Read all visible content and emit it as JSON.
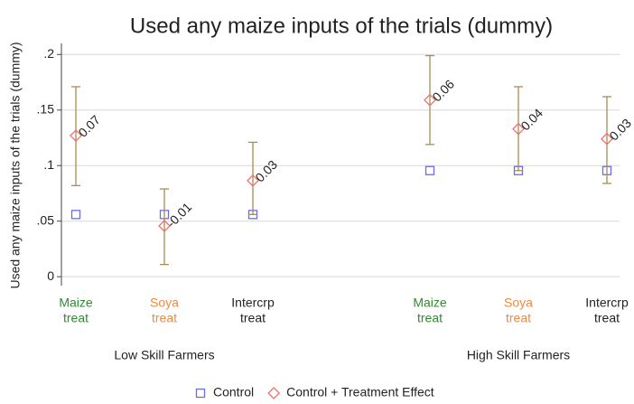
{
  "chart_data": {
    "type": "dot-ci",
    "title": "Used any maize inputs of the trials (dummy)",
    "y_label": "Used any maize inputs of the trials (dummy)",
    "categories": [
      [
        "Maize",
        "treat"
      ],
      [
        "Soya",
        "treat"
      ],
      [
        "Intercrp",
        "treat"
      ],
      [
        "Maize",
        "treat"
      ],
      [
        "Soya",
        "treat"
      ],
      [
        "Intercrp",
        "treat"
      ]
    ],
    "category_colors": [
      "#2e8b2e",
      "#f08a3c",
      "#222222",
      "#2e8b2e",
      "#f08a3c",
      "#222222"
    ],
    "groups": [
      "Low Skill Farmers",
      "High Skill Farmers"
    ],
    "series": [
      {
        "name": "Control",
        "color": "#6b6bf0",
        "marker": "square",
        "values": [
          0.056,
          0.056,
          0.056,
          0.0955,
          0.0955,
          0.0955
        ]
      },
      {
        "name": "Control + Treatment Effect",
        "color": "#f07070",
        "marker": "diamond",
        "values": [
          0.127,
          0.0457,
          0.0865,
          0.159,
          0.133,
          0.124
        ],
        "ci_low": [
          0.082,
          0.011,
          0.056,
          0.119,
          0.0955,
          0.084
        ],
        "ci_high": [
          0.171,
          0.079,
          0.121,
          0.199,
          0.171,
          0.162
        ],
        "ci_color": "#a88c50",
        "effects": [
          0.07,
          -0.01,
          0.03,
          0.06,
          0.04,
          0.03
        ]
      }
    ],
    "ylim": [
      -0.008,
      0.21
    ],
    "yticks": [
      0,
      {
        "value": 0.05,
        "label": ".05"
      },
      {
        "value": 0.1,
        "label": ".1"
      },
      {
        "value": 0.15,
        "label": ".15"
      },
      {
        "value": 0.2,
        "label": ".2"
      }
    ],
    "grid": true
  }
}
